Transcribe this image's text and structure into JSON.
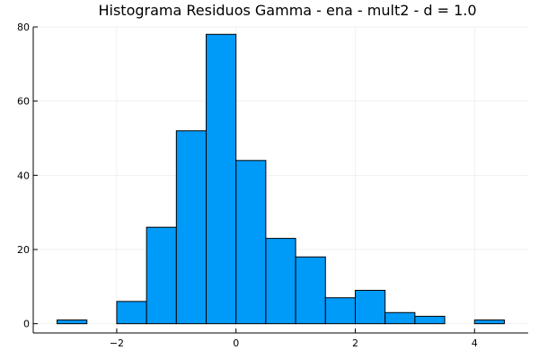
{
  "chart_data": {
    "type": "bar",
    "title": "Histograma Residuos Gamma - ena - mult2 - d = 1.0",
    "xlabel": "",
    "ylabel": "",
    "bin_edges": [
      -3.0,
      -2.5,
      -2.0,
      -1.5,
      -1.0,
      -0.5,
      0.0,
      0.5,
      1.0,
      1.5,
      2.0,
      2.5,
      3.0,
      3.5,
      4.0,
      4.5
    ],
    "values": [
      1,
      0,
      6,
      26,
      52,
      78,
      44,
      23,
      18,
      7,
      9,
      3,
      2,
      0,
      1
    ],
    "xlim": [
      -3.4,
      4.9
    ],
    "ylim": [
      -2.5,
      80
    ],
    "xticks": [
      -2,
      0,
      2,
      4
    ],
    "xtick_labels": [
      "−2",
      "0",
      "2",
      "4"
    ],
    "yticks": [
      0,
      20,
      40,
      60,
      80
    ],
    "ytick_labels": [
      "0",
      "20",
      "40",
      "60",
      "80"
    ],
    "grid": true,
    "bar_color": "#009af9",
    "edge_color": "#000000"
  }
}
